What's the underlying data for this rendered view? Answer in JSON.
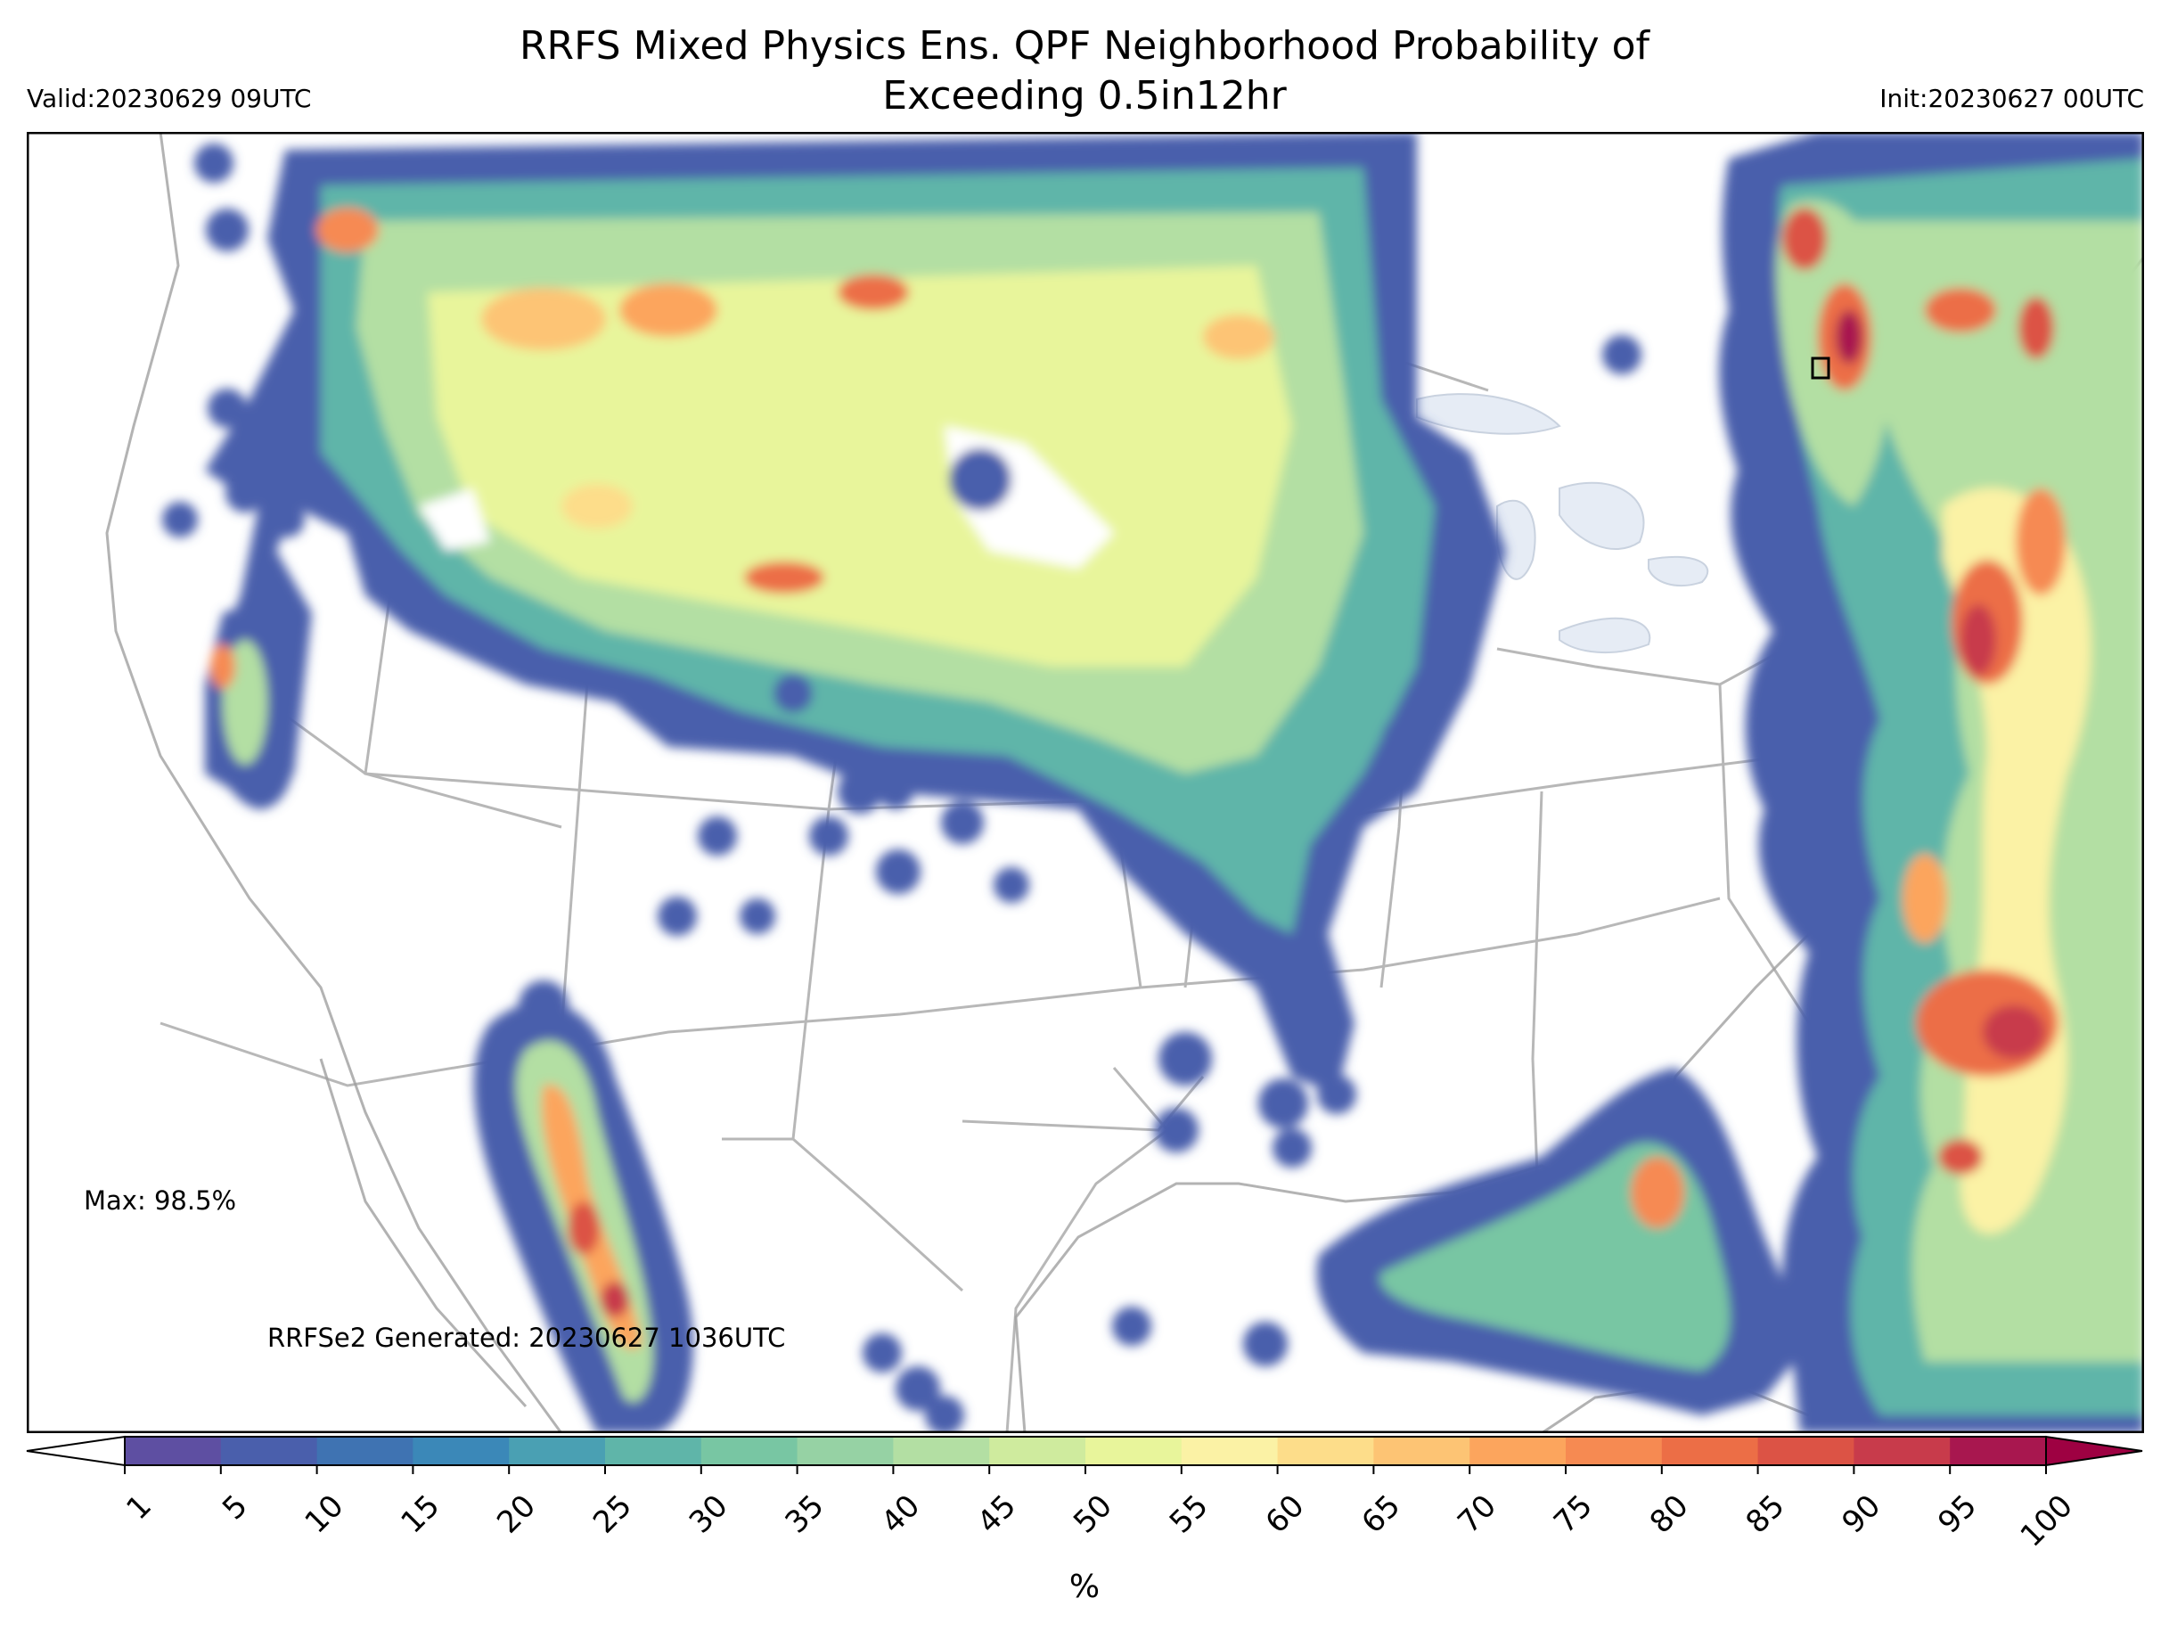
{
  "title": {
    "line1": "RRFS Mixed Physics Ens. QPF Neighborhood Probability of",
    "line2": "Exceeding 0.5in12hr"
  },
  "valid_label": "Valid:20230629 09UTC",
  "init_label": "Init:20230627 00UTC",
  "max_label": "Max: 98.5%",
  "generated_label": "RRFSe2 Generated: 20230627 1036UTC",
  "colorbar": {
    "unit_label": "%",
    "ticks": [
      "1",
      "5",
      "10",
      "15",
      "20",
      "25",
      "30",
      "35",
      "40",
      "45",
      "50",
      "55",
      "60",
      "65",
      "70",
      "75",
      "80",
      "85",
      "90",
      "95",
      "100"
    ],
    "colors": [
      "#5e4fa2",
      "#4a5fac",
      "#3f73b2",
      "#3b88b8",
      "#4aa0b3",
      "#5fb5a9",
      "#78c6a3",
      "#96d2a4",
      "#b3dfa3",
      "#cfeb9e",
      "#e8f59b",
      "#fbf2a5",
      "#fddd8a",
      "#fdc474",
      "#fca55d",
      "#f68a52",
      "#ec6e46",
      "#dc5345",
      "#c83b4b",
      "#a8174f"
    ],
    "under_color": "#ffffff",
    "over_color": "#9e0142"
  },
  "map_colors": {
    "border": "#9a9a9a",
    "lakes": "#e6ecf5"
  }
}
